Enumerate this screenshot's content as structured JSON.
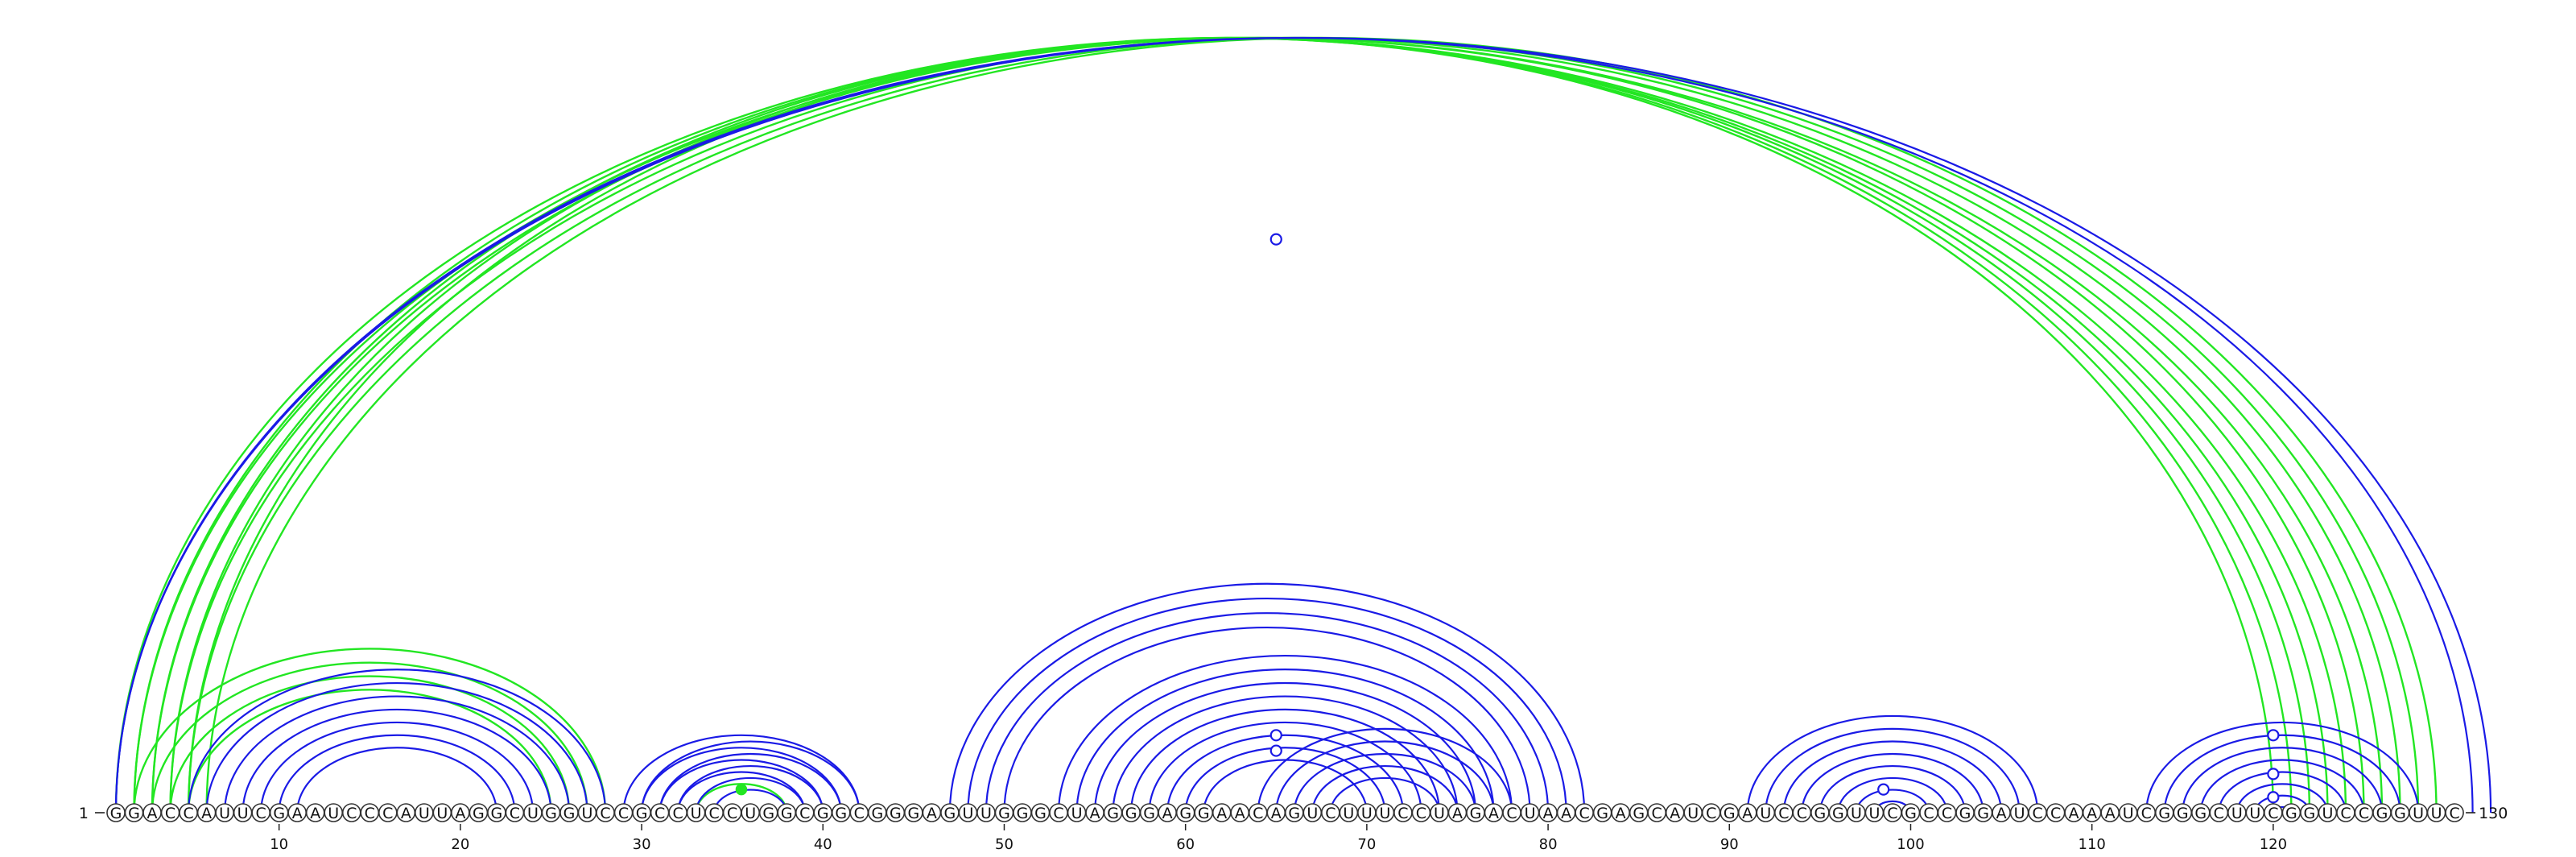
{
  "sequence": "GGACCAUUCGAAUCCCAUUAGGCUGGUCCGCCUCCUGGCGGCGGGAGUUGGGCUAGGGAGGAACAGUCUUUCCUAGACUAACGAGCAUCGAUCCGGUUCGCCGGAUCCAAAUCGGGCUUCGGUCCGGUUC",
  "start_label": "1",
  "end_label": "130",
  "ticks": [
    10,
    20,
    30,
    40,
    50,
    60,
    70,
    80,
    90,
    100,
    110,
    120
  ],
  "colors": {
    "blue": "#1a1ae6",
    "green": "#22e622",
    "text": "#111111",
    "nucleotide_outline": "#333333"
  },
  "arcs_above_green": [
    [
      1,
      124
    ],
    [
      2,
      123
    ],
    [
      3,
      122
    ],
    [
      4,
      121
    ],
    [
      5,
      120
    ],
    [
      2,
      126
    ],
    [
      3,
      125
    ],
    [
      4,
      127
    ],
    [
      5,
      128
    ],
    [
      6,
      129
    ],
    [
      2,
      28
    ],
    [
      3,
      27
    ],
    [
      4,
      26
    ],
    [
      5,
      25
    ],
    [
      33,
      38
    ]
  ],
  "arcs_above_blue": [
    [
      1,
      131
    ],
    [
      1,
      132
    ],
    [
      5,
      28
    ],
    [
      6,
      27
    ],
    [
      7,
      26
    ],
    [
      8,
      25
    ],
    [
      9,
      24
    ],
    [
      10,
      23
    ],
    [
      11,
      22
    ],
    [
      29,
      42
    ],
    [
      30,
      41
    ],
    [
      31,
      40
    ],
    [
      32,
      39
    ],
    [
      33,
      39
    ],
    [
      34,
      38
    ],
    [
      32,
      40
    ],
    [
      31,
      41
    ],
    [
      30,
      42
    ],
    [
      47,
      82
    ],
    [
      48,
      81
    ],
    [
      49,
      80
    ],
    [
      50,
      79
    ],
    [
      53,
      78
    ],
    [
      54,
      77
    ],
    [
      55,
      76
    ],
    [
      56,
      75
    ],
    [
      57,
      74
    ],
    [
      58,
      73
    ],
    [
      59,
      72
    ],
    [
      60,
      71
    ],
    [
      61,
      70
    ],
    [
      64,
      78
    ],
    [
      65,
      77
    ],
    [
      66,
      76
    ],
    [
      67,
      75
    ],
    [
      68,
      74
    ],
    [
      91,
      107
    ],
    [
      92,
      106
    ],
    [
      93,
      105
    ],
    [
      94,
      104
    ],
    [
      95,
      103
    ],
    [
      96,
      102
    ],
    [
      97,
      101
    ],
    [
      98,
      100
    ],
    [
      113,
      128
    ],
    [
      114,
      127
    ],
    [
      115,
      126
    ],
    [
      116,
      125
    ],
    [
      117,
      124
    ],
    [
      118,
      123
    ],
    [
      119,
      122
    ],
    [
      120,
      121
    ]
  ],
  "open_markers": [
    {
      "x": 65.0,
      "y": 0.74
    },
    {
      "x": 65.0,
      "y": 0.08
    },
    {
      "x": 65.0,
      "y": 0.1
    },
    {
      "x": 98.5,
      "y": 0.03
    },
    {
      "x": 120.0,
      "y": 0.1
    },
    {
      "x": 120.0,
      "y": 0.05
    },
    {
      "x": 120.0,
      "y": 0.02
    }
  ],
  "filled_markers": [
    {
      "x": 35.5,
      "y": 0.03
    }
  ]
}
